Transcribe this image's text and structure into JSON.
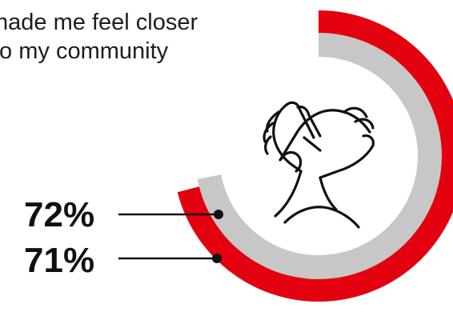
{
  "caption": {
    "line1": "made me feel closer",
    "line2": "to my community"
  },
  "icon": "handshake-icon",
  "colors": {
    "outer_ring": "#e3000f",
    "inner_ring": "#c7c7c7",
    "text": "#111111"
  },
  "chart_data": {
    "type": "pie",
    "style": "concentric-rings",
    "series": [
      {
        "value": 72,
        "label": "72%",
        "color": "#c7c7c7"
      },
      {
        "value": 71,
        "label": "71%",
        "color": "#e3000f"
      }
    ]
  }
}
